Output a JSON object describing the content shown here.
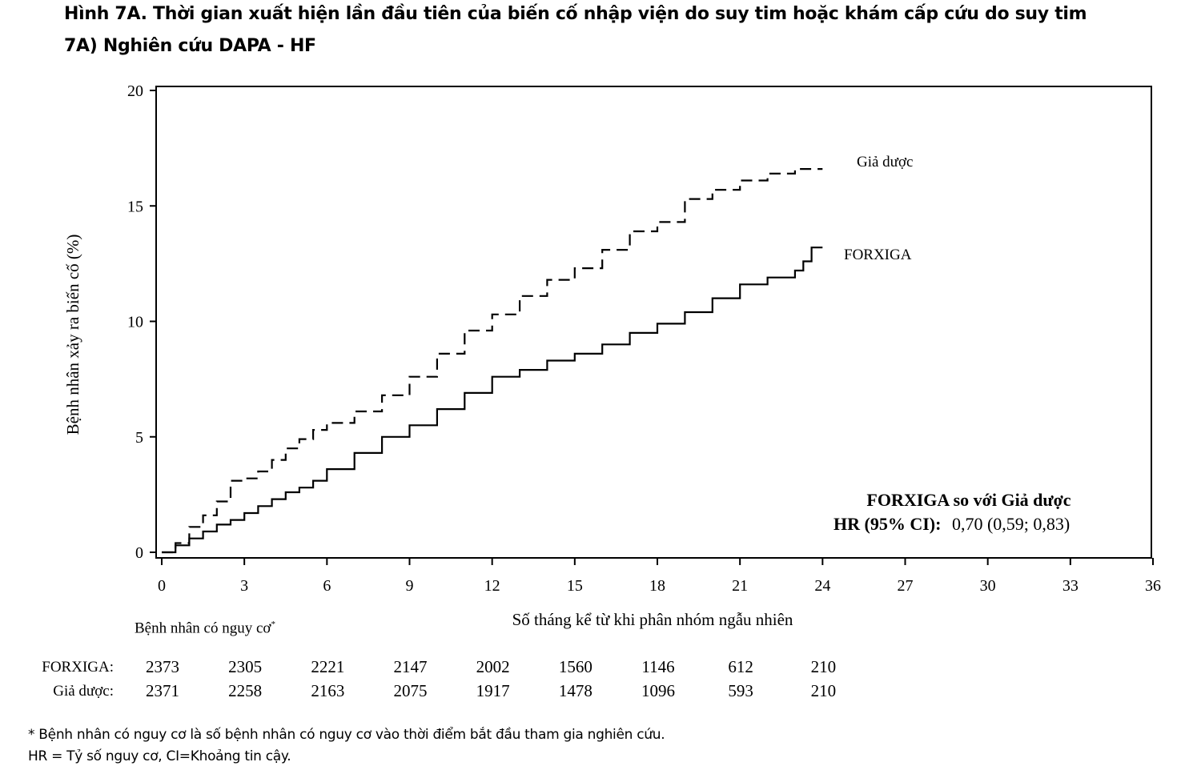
{
  "figure": {
    "title_line1": "Hình 7A. Thời gian xuất hiện lần đầu tiên của biến cố nhập viện do suy tim hoặc khám cấp cứu do suy tim",
    "title_line2": "7A) Nghiên cứu DAPA - HF"
  },
  "chart_data": {
    "type": "line",
    "xlabel": "Số tháng kể từ khi phân nhóm ngẫu nhiên",
    "ylabel": "Bệnh nhân xảy ra biến cố (%)",
    "xlim": [
      0,
      36
    ],
    "ylim": [
      0,
      20
    ],
    "xticks": [
      0,
      3,
      6,
      9,
      12,
      15,
      18,
      21,
      24,
      27,
      30,
      33,
      36
    ],
    "yticks": [
      0,
      5,
      10,
      15,
      20
    ],
    "legend_placement": "inline labels at end of curves",
    "series": [
      {
        "name": "Giả dược",
        "style": "dashed",
        "x": [
          0,
          0.5,
          1,
          1.5,
          2,
          2.5,
          3,
          3.5,
          4,
          4.5,
          5,
          5.5,
          6,
          7,
          8,
          9,
          10,
          11,
          12,
          13,
          14,
          15,
          16,
          17,
          18,
          18.6,
          19,
          20,
          21,
          22,
          23,
          24
        ],
        "y": [
          0,
          0.4,
          1.1,
          1.6,
          2.2,
          3.1,
          3.2,
          3.5,
          4.0,
          4.5,
          4.9,
          5.3,
          5.6,
          6.1,
          6.8,
          7.6,
          8.6,
          9.6,
          10.3,
          11.1,
          11.8,
          12.3,
          13.1,
          13.9,
          14.3,
          14.3,
          15.3,
          15.7,
          16.1,
          16.4,
          16.6,
          16.6
        ]
      },
      {
        "name": "FORXIGA",
        "style": "solid",
        "x": [
          0,
          0.5,
          1,
          1.5,
          2,
          2.5,
          3,
          3.5,
          4,
          4.5,
          5,
          5.5,
          6,
          7,
          8,
          9,
          10,
          11,
          12,
          13,
          14,
          15,
          16,
          17,
          18,
          19,
          20,
          21,
          22,
          23,
          23.3,
          23.6,
          24
        ],
        "y": [
          0,
          0.3,
          0.6,
          0.9,
          1.2,
          1.4,
          1.7,
          2.0,
          2.3,
          2.6,
          2.8,
          3.1,
          3.6,
          4.3,
          5.0,
          5.5,
          6.2,
          6.9,
          7.6,
          7.9,
          8.3,
          8.6,
          9.0,
          9.5,
          9.9,
          10.4,
          11.0,
          11.6,
          11.9,
          12.2,
          12.6,
          13.2,
          13.2
        ]
      }
    ],
    "annotation": {
      "title": "FORXIGA so với Giả dược",
      "hr_label": "HR (95% CI):",
      "hr_value": "0,70 (0,59; 0,83)"
    }
  },
  "risk_table": {
    "header": "Bệnh nhân có nguy cơ",
    "header_mark": "*",
    "months": [
      0,
      3,
      6,
      9,
      12,
      15,
      18,
      21,
      24
    ],
    "rows": [
      {
        "label": "FORXIGA:",
        "values": [
          "2373",
          "2305",
          "2221",
          "2147",
          "2002",
          "1560",
          "1146",
          "612",
          "210"
        ]
      },
      {
        "label": "Giả dược:",
        "values": [
          "2371",
          "2258",
          "2163",
          "2075",
          "1917",
          "1478",
          "1096",
          "593",
          "210"
        ]
      }
    ]
  },
  "footnotes": {
    "note1": "*  Bệnh nhân có nguy cơ là số bệnh nhân có nguy cơ vào thời điểm bắt đầu tham gia nghiên cứu.",
    "note2": "HR = Tỷ số nguy cơ, CI=Khoảng tin cậy."
  }
}
